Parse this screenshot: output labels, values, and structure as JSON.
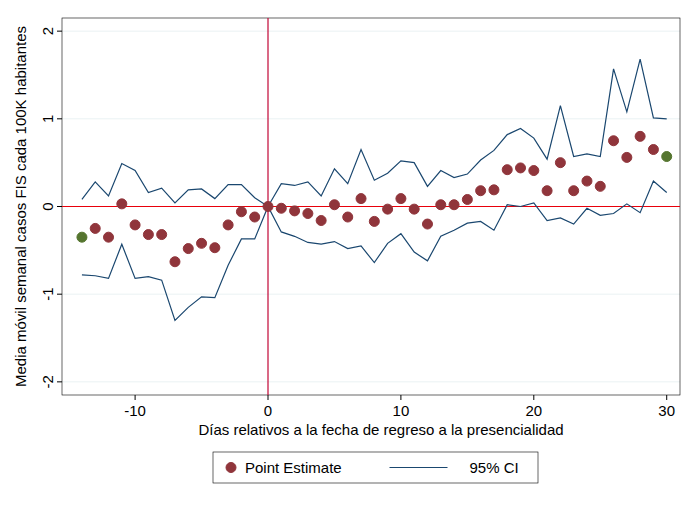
{
  "chart_data": {
    "type": "scatter",
    "xlabel": "Días relativos a la fecha de regreso a la presencialidad",
    "ylabel": "Media móvil semanal casos FIS cada 100K habitantes",
    "x": [
      -14,
      -13,
      -12,
      -11,
      -10,
      -9,
      -8,
      -7,
      -6,
      -5,
      -4,
      -3,
      -2,
      -1,
      0,
      1,
      2,
      3,
      4,
      5,
      6,
      7,
      8,
      9,
      10,
      11,
      12,
      13,
      14,
      15,
      16,
      17,
      18,
      19,
      20,
      21,
      22,
      23,
      24,
      25,
      26,
      27,
      28,
      29,
      30
    ],
    "xlim": [
      -15.5,
      31
    ],
    "xticks": [
      -10,
      0,
      10,
      20,
      30
    ],
    "ylim": [
      -2.15,
      2.15
    ],
    "yticks": [
      -2,
      -1,
      0,
      1,
      2
    ],
    "grid": true,
    "legend": "bottom",
    "reference_lines": [
      {
        "axis": "x",
        "value": 0,
        "color": "#c10534"
      },
      {
        "axis": "y",
        "value": 0,
        "color": "#e8000b"
      }
    ],
    "series": [
      {
        "name": "Point Estimate",
        "type": "scatter",
        "marker": "circle",
        "color": "#90353b",
        "colors": [
          "#55752f",
          "#90353b",
          "#90353b",
          "#90353b",
          "#90353b",
          "#90353b",
          "#90353b",
          "#90353b",
          "#90353b",
          "#90353b",
          "#90353b",
          "#90353b",
          "#90353b",
          "#90353b",
          "#90353b",
          "#90353b",
          "#90353b",
          "#90353b",
          "#90353b",
          "#90353b",
          "#90353b",
          "#90353b",
          "#90353b",
          "#90353b",
          "#90353b",
          "#90353b",
          "#90353b",
          "#90353b",
          "#90353b",
          "#90353b",
          "#90353b",
          "#90353b",
          "#90353b",
          "#90353b",
          "#90353b",
          "#90353b",
          "#90353b",
          "#90353b",
          "#90353b",
          "#90353b",
          "#90353b",
          "#90353b",
          "#90353b",
          "#90353b",
          "#55752f"
        ],
        "values": [
          -0.35,
          -0.25,
          -0.35,
          0.03,
          -0.21,
          -0.32,
          -0.32,
          -0.63,
          -0.48,
          -0.42,
          -0.47,
          -0.21,
          -0.06,
          -0.12,
          0,
          -0.02,
          -0.05,
          -0.08,
          -0.16,
          0.02,
          -0.12,
          0.09,
          -0.17,
          -0.03,
          0.09,
          -0.03,
          -0.2,
          0.02,
          0.02,
          0.08,
          0.18,
          0.19,
          0.42,
          0.44,
          0.41,
          0.18,
          0.5,
          0.18,
          0.29,
          0.23,
          0.75,
          0.56,
          0.8,
          0.65,
          0.57
        ]
      },
      {
        "name": "95% CI",
        "type": "line",
        "line_style": "solid",
        "color": "#1a476f",
        "values": [
          0.08,
          0.28,
          0.12,
          0.49,
          0.41,
          0.16,
          0.21,
          0.04,
          0.19,
          0.2,
          0.09,
          0.25,
          0.25,
          0.1,
          0,
          0.26,
          0.24,
          0.28,
          0.12,
          0.43,
          0.26,
          0.65,
          0.3,
          0.38,
          0.52,
          0.5,
          0.23,
          0.41,
          0.33,
          0.37,
          0.53,
          0.64,
          0.82,
          0.89,
          0.78,
          0.54,
          1.15,
          0.57,
          0.6,
          0.57,
          1.57,
          1.08,
          1.68,
          1.01,
          1.0
        ],
        "lower": [
          -0.78,
          -0.79,
          -0.82,
          -0.43,
          -0.82,
          -0.8,
          -0.84,
          -1.3,
          -1.15,
          -1.03,
          -1.04,
          -0.67,
          -0.37,
          -0.37,
          0,
          -0.29,
          -0.34,
          -0.41,
          -0.43,
          -0.4,
          -0.48,
          -0.45,
          -0.64,
          -0.42,
          -0.31,
          -0.52,
          -0.62,
          -0.34,
          -0.27,
          -0.19,
          -0.17,
          -0.27,
          0.02,
          0.0,
          0.04,
          -0.16,
          -0.13,
          -0.2,
          -0.02,
          -0.1,
          -0.08,
          0.03,
          -0.07,
          0.29,
          0.16
        ]
      }
    ]
  }
}
